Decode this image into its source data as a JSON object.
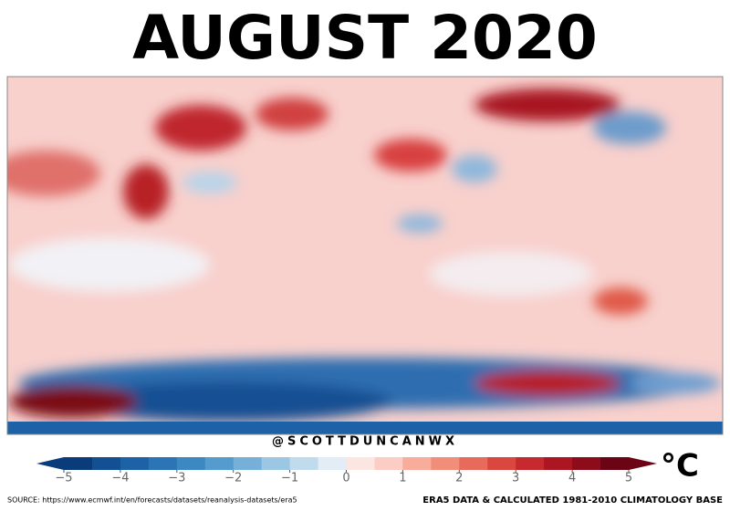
{
  "header": {
    "title": "AUGUST 2020"
  },
  "credit": "@SCOTTDUNCANWX",
  "colorbar": {
    "range": [
      -5,
      5
    ],
    "ticks": [
      {
        "value": -5,
        "label": "−5"
      },
      {
        "value": -4,
        "label": "−4"
      },
      {
        "value": -3,
        "label": "−3"
      },
      {
        "value": -2,
        "label": "−2"
      },
      {
        "value": -1,
        "label": "−1"
      },
      0,
      1,
      2,
      3,
      4,
      5
    ],
    "colors": [
      "#0a3b7a",
      "#134f93",
      "#1d61a6",
      "#2b75b6",
      "#3b88c2",
      "#559bcd",
      "#76b0d8",
      "#9cc7e3",
      "#c0dbec",
      "#e2edf5",
      "#fbe6e2",
      "#fbcdc4",
      "#f7ac9c",
      "#f28d7a",
      "#e86a5a",
      "#d9473f",
      "#c62a2e",
      "#ac1623",
      "#8c0c1c",
      "#6b0515"
    ],
    "unit": "°C"
  },
  "footer": {
    "source": "SOURCE: https://www.ecmwf.int/en/forecasts/datasets/reanalysis-datasets/era5",
    "note": "ERA5 DATA & CALCULATED 1981-2010 CLIMATOLOGY BASE"
  }
}
